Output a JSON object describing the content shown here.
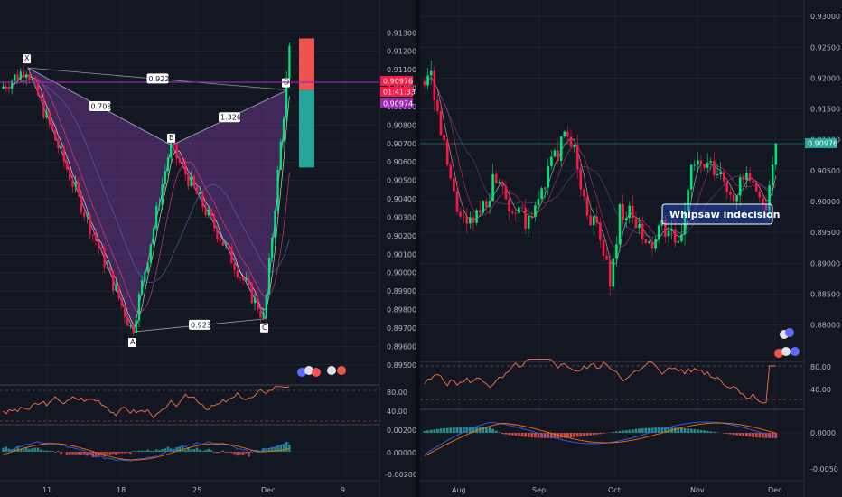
{
  "chart_data": [
    {
      "type": "candlestick",
      "panel": "left",
      "pattern": "harmonic-xabcd",
      "y_axis_ticks": [
        "0.91300",
        "0.91200",
        "0.91100",
        "0.91000",
        "0.90900",
        "0.90800",
        "0.90700",
        "0.90600",
        "0.90500",
        "0.90400",
        "0.90300",
        "0.90200",
        "0.90100",
        "0.90000",
        "0.89900",
        "0.89800",
        "0.89700",
        "0.89600",
        "0.89500"
      ],
      "ylim": [
        0.8945,
        0.9138
      ],
      "x_axis_ticks": [
        "11",
        "18",
        "25",
        "Dec",
        "9"
      ],
      "pattern_points": [
        {
          "label": "X",
          "y": 0.9111
        },
        {
          "label": "A",
          "y": 0.8968
        },
        {
          "label": "B",
          "y": 0.9069
        },
        {
          "label": "C",
          "y": 0.8975
        },
        {
          "label": "D",
          "y": 0.9099
        }
      ],
      "ratios": [
        "0.922",
        "0.708",
        "1.326",
        "0.923"
      ],
      "price_tags": [
        "0.90976",
        "01:41:33",
        "0.90974"
      ],
      "position": {
        "target": 0.9127,
        "entry": 0.9099,
        "stop": 0.9057,
        "profit_color": "#26a69a",
        "loss_color": "#ef5350"
      },
      "indicators": [
        {
          "name": "RSI",
          "axis_ticks": [
            "80.00",
            "40.00"
          ]
        },
        {
          "name": "MACD",
          "axis_ticks": [
            "0.00200",
            "0.00000",
            "-0.00200"
          ]
        }
      ]
    },
    {
      "type": "candlestick",
      "panel": "right",
      "y_axis_ticks": [
        "0.93000",
        "0.92500",
        "0.92000",
        "0.91500",
        "0.91000",
        "0.90500",
        "0.90000",
        "0.89500",
        "0.89000",
        "0.88500",
        "0.88000"
      ],
      "ylim": [
        0.877,
        0.9312
      ],
      "x_axis_ticks": [
        "Aug",
        "Sep",
        "Oct",
        "Nov",
        "Dec"
      ],
      "price_tags": [
        "0.90976"
      ],
      "annotations": [
        "Whipsaw indecision"
      ],
      "indicators": [
        {
          "name": "RSI",
          "axis_ticks": [
            "80.00",
            "40.00"
          ]
        },
        {
          "name": "MACD",
          "axis_ticks": [
            "0.0000",
            "-0.0050"
          ]
        }
      ]
    }
  ],
  "colors": {
    "background": "#131722",
    "up": "#00e676",
    "down": "#ff1744",
    "pattern_fill": "#7b3fa0",
    "price_line": "#9c27b0",
    "rsi": "#ff7043",
    "grid": "#2a2e39"
  }
}
